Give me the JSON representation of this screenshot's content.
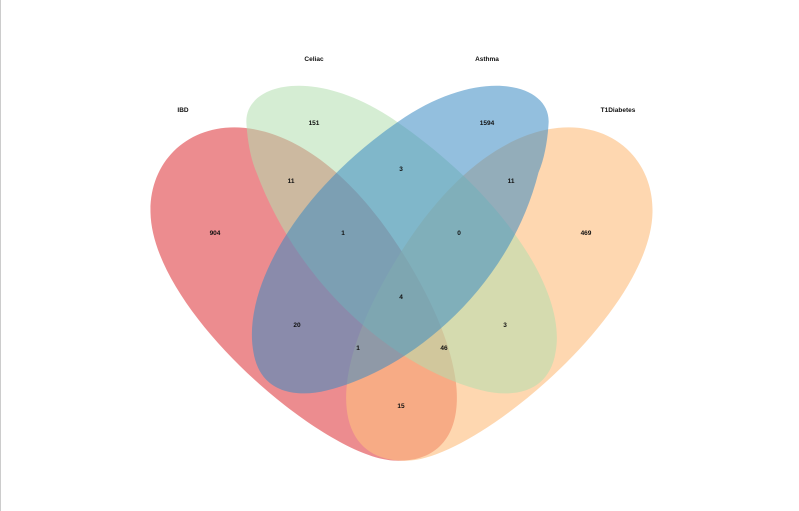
{
  "chart_data": {
    "type": "venn",
    "sets": [
      {
        "name": "IBD",
        "color": "#e0464b"
      },
      {
        "name": "Celiac",
        "color": "#b2dfae"
      },
      {
        "name": "Asthma",
        "color": "#3b8bc2"
      },
      {
        "name": "T1Diabetes",
        "color": "#fdbf7f"
      }
    ],
    "regions": [
      {
        "sets": [
          "IBD"
        ],
        "count": "904"
      },
      {
        "sets": [
          "Celiac"
        ],
        "count": "151"
      },
      {
        "sets": [
          "Asthma"
        ],
        "count": "1594"
      },
      {
        "sets": [
          "T1Diabetes"
        ],
        "count": "469"
      },
      {
        "sets": [
          "IBD",
          "Celiac"
        ],
        "count": "11"
      },
      {
        "sets": [
          "Celiac",
          "Asthma"
        ],
        "count": "3"
      },
      {
        "sets": [
          "Asthma",
          "T1Diabetes"
        ],
        "count": "11"
      },
      {
        "sets": [
          "IBD",
          "Celiac",
          "Asthma"
        ],
        "count": "1"
      },
      {
        "sets": [
          "Celiac",
          "Asthma",
          "T1Diabetes"
        ],
        "count": "0"
      },
      {
        "sets": [
          "IBD",
          "Celiac",
          "Asthma",
          "T1Diabetes"
        ],
        "count": "4"
      },
      {
        "sets": [
          "IBD",
          "Asthma"
        ],
        "count": "20"
      },
      {
        "sets": [
          "Celiac",
          "T1Diabetes"
        ],
        "count": "3"
      },
      {
        "sets": [
          "IBD",
          "Asthma",
          "T1Diabetes"
        ],
        "count": "1"
      },
      {
        "sets": [
          "IBD",
          "Celiac",
          "T1Diabetes"
        ],
        "count": "46"
      },
      {
        "sets": [
          "IBD",
          "T1Diabetes"
        ],
        "count": "15"
      }
    ]
  }
}
